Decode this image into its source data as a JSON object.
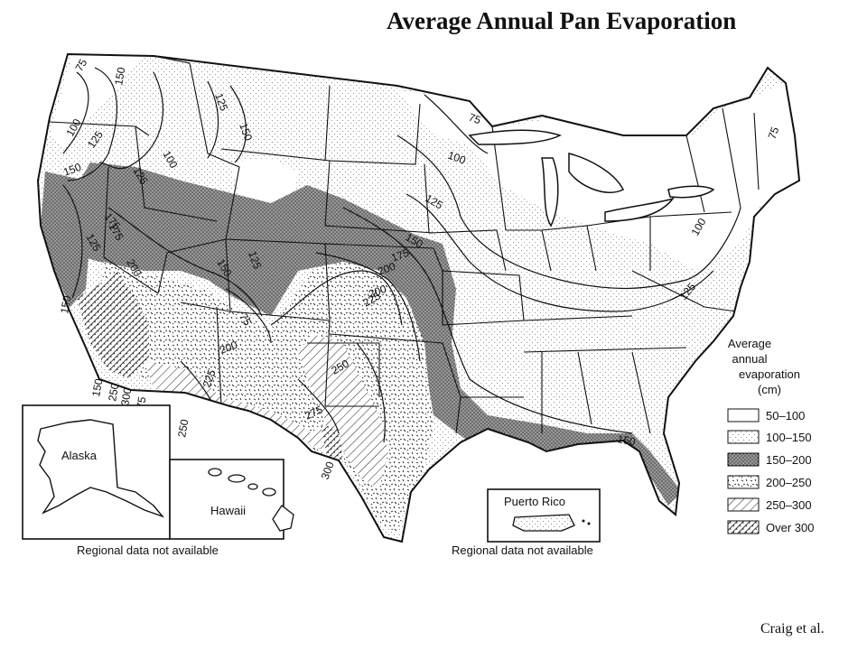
{
  "title": "Average Annual Pan Evaporation",
  "credit": "Craig et al.",
  "legend": {
    "title_lines": [
      "Average",
      "annual",
      "evaporation",
      "(cm)"
    ],
    "items": [
      {
        "label": "50–100",
        "pattern": "white"
      },
      {
        "label": "100–150",
        "pattern": "light-dots"
      },
      {
        "label": "150–200",
        "pattern": "dark-stipple"
      },
      {
        "label": "200–250",
        "pattern": "dashes"
      },
      {
        "label": "250–300",
        "pattern": "hatch"
      },
      {
        "label": "Over 300",
        "pattern": "cross-hatch"
      }
    ]
  },
  "insets": {
    "alaska_label": "Alaska",
    "hawaii_label": "Hawaii",
    "puerto_rico_label": "Puerto Rico",
    "left_note": "Regional data not available",
    "right_note": "Regional data not available"
  },
  "isolines": [
    "75",
    "100",
    "125",
    "150",
    "175",
    "200",
    "225",
    "250",
    "275",
    "300"
  ],
  "isoline_labels": [
    "75",
    "150",
    "100",
    "125",
    "125",
    "100",
    "125",
    "150",
    "150",
    "175",
    "125",
    "200",
    "150",
    "125",
    "75",
    "200",
    "225",
    "250",
    "275",
    "300",
    "150",
    "250",
    "300",
    "275",
    "250",
    "225",
    "175",
    "200",
    "200",
    "150",
    "125",
    "100",
    "75",
    "100",
    "125",
    "150",
    "75",
    "75",
    "100",
    "125",
    "150",
    "150",
    "175",
    "225",
    "200",
    "250",
    "300"
  ]
}
